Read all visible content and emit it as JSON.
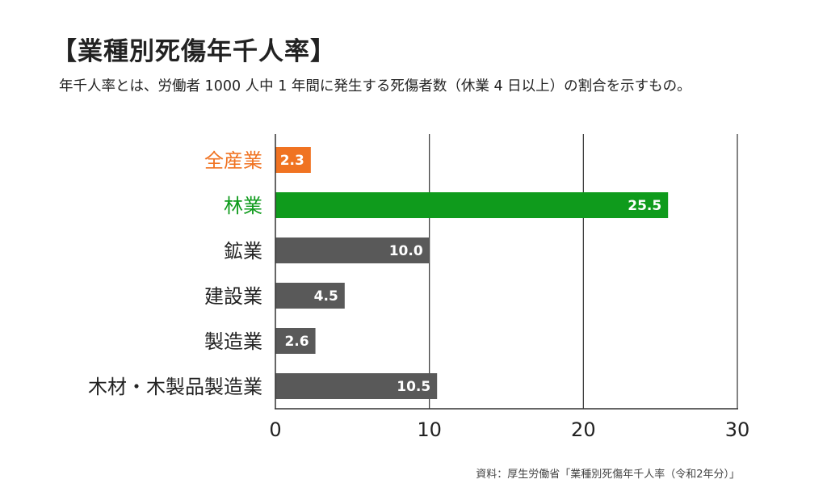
{
  "chart_data": {
    "type": "bar",
    "orientation": "horizontal",
    "title": "【業種別死傷年千人率】",
    "subtitle": "年千人率とは、労働者 1000 人中 1 年間に発生する死傷者数（休業 4 日以上）の割合を示すもの。",
    "source": "資料：厚生労働省「業種別死傷年千人率（令和2年分）」",
    "categories": [
      "全産業",
      "林業",
      "鉱業",
      "建設業",
      "製造業",
      "木材・木製品製造業"
    ],
    "values": [
      2.3,
      25.5,
      10.0,
      4.5,
      2.6,
      10.5
    ],
    "value_labels": [
      "2.3",
      "25.5",
      "10.0",
      "4.5",
      "2.6",
      "10.5"
    ],
    "bar_colors": [
      "#f07322",
      "#0f9b1c",
      "#595959",
      "#595959",
      "#595959",
      "#595959"
    ],
    "label_colors": [
      "#f07322",
      "#0f9b1c",
      "#222222",
      "#222222",
      "#222222",
      "#222222"
    ],
    "xticks": [
      0,
      10,
      20,
      30
    ],
    "xlim": [
      0,
      30
    ],
    "grid": "vertical",
    "legend": "none"
  }
}
